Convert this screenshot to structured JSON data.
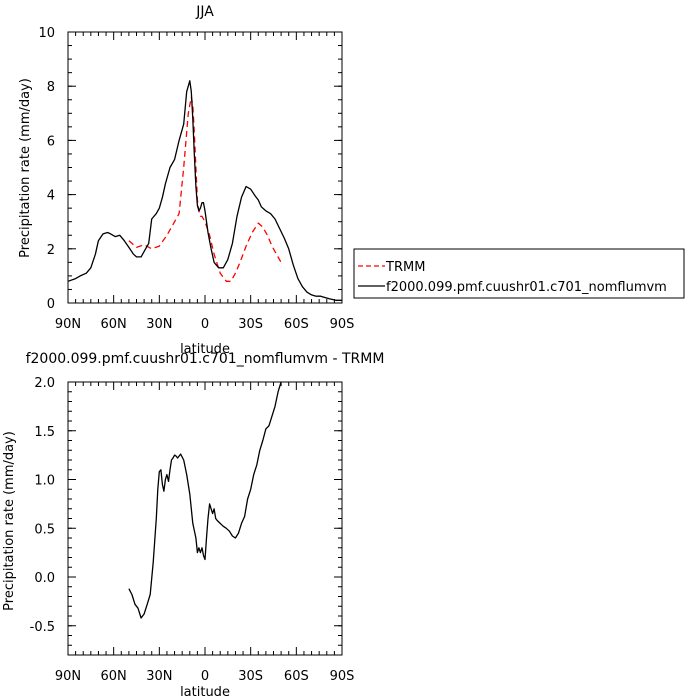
{
  "chart_data": [
    {
      "type": "line",
      "title": "JJA",
      "xlabel": "latitude",
      "ylabel": "Precipitation rate (mm/day)",
      "xlim": [
        90,
        -90
      ],
      "ylim": [
        0,
        10
      ],
      "x_ticks": [
        90,
        60,
        30,
        0,
        -30,
        -60,
        -90
      ],
      "x_tick_labels": [
        "90N",
        "60N",
        "30N",
        "0",
        "30S",
        "60S",
        "90S"
      ],
      "y_ticks": [
        0,
        2,
        4,
        6,
        8,
        10
      ],
      "y_tick_labels": [
        "0",
        "2",
        "4",
        "6",
        "8",
        "10"
      ],
      "legend": {
        "position": "right",
        "entries": [
          "TRMM",
          "f2000.099.pmf.cuushr01.c701_nomflumvm"
        ]
      },
      "series": [
        {
          "name": "TRMM",
          "color": "#ff0000",
          "dash": "dashed",
          "x": [
            50,
            45,
            40,
            35,
            30,
            25,
            20,
            17,
            14,
            11,
            9,
            8,
            7,
            6,
            5,
            4,
            3,
            2,
            0,
            -3,
            -6,
            -10,
            -14,
            -17,
            -20,
            -23,
            -27,
            -31,
            -35,
            -38,
            -41,
            -44,
            -47,
            -50
          ],
          "y": [
            2.3,
            2.05,
            2.15,
            2.0,
            2.1,
            2.5,
            3.0,
            3.3,
            5.0,
            7.0,
            7.6,
            7.3,
            6.3,
            5.0,
            3.8,
            3.4,
            3.2,
            3.2,
            3.0,
            2.5,
            1.8,
            1.1,
            0.8,
            0.8,
            1.1,
            1.5,
            2.1,
            2.6,
            2.95,
            2.8,
            2.5,
            2.1,
            1.8,
            1.5
          ]
        },
        {
          "name": "f2000.099.pmf.cuushr01.c701_nomflumvm",
          "color": "#000000",
          "dash": "solid",
          "x": [
            90,
            85,
            82,
            78,
            75,
            72,
            70,
            67,
            64,
            62,
            59,
            56,
            53,
            50,
            47,
            45,
            42,
            39,
            37,
            35,
            32,
            30,
            28,
            26,
            23,
            20,
            17,
            14,
            12,
            10,
            9,
            8,
            7,
            6,
            5,
            4,
            3,
            2,
            1,
            0,
            -2,
            -4,
            -6,
            -9,
            -12,
            -15,
            -18,
            -21,
            -24,
            -27,
            -30,
            -33,
            -35,
            -37,
            -40,
            -43,
            -46,
            -49,
            -52,
            -55,
            -58,
            -61,
            -64,
            -67,
            -70,
            -73,
            -76,
            -79,
            -82,
            -86,
            -90
          ],
          "y": [
            0.8,
            0.9,
            1.0,
            1.1,
            1.3,
            1.8,
            2.3,
            2.55,
            2.6,
            2.55,
            2.45,
            2.5,
            2.3,
            2.05,
            1.8,
            1.7,
            1.7,
            2.0,
            2.2,
            3.1,
            3.3,
            3.5,
            3.9,
            4.4,
            5.0,
            5.3,
            6.0,
            6.6,
            7.8,
            8.2,
            7.8,
            6.8,
            5.5,
            4.3,
            3.6,
            3.4,
            3.5,
            3.7,
            3.7,
            3.4,
            2.6,
            2.0,
            1.5,
            1.3,
            1.3,
            1.6,
            2.2,
            3.2,
            3.9,
            4.3,
            4.2,
            3.95,
            3.8,
            3.55,
            3.4,
            3.3,
            3.1,
            2.75,
            2.4,
            2.0,
            1.4,
            0.9,
            0.6,
            0.4,
            0.3,
            0.25,
            0.25,
            0.2,
            0.15,
            0.1,
            0.1
          ]
        }
      ]
    },
    {
      "type": "line",
      "title": "f2000.099.pmf.cuushr01.c701_nomflumvm - TRMM",
      "xlabel": "latitude",
      "ylabel": "Precipitation rate (mm/day)",
      "xlim": [
        90,
        -90
      ],
      "ylim": [
        -0.8,
        2.0
      ],
      "x_ticks": [
        90,
        60,
        30,
        0,
        -30,
        -60,
        -90
      ],
      "x_tick_labels": [
        "90N",
        "60N",
        "30N",
        "0",
        "30S",
        "60S",
        "90S"
      ],
      "y_ticks": [
        -0.5,
        0.0,
        0.5,
        1.0,
        1.5,
        2.0
      ],
      "y_tick_labels": [
        "-0.5",
        "0.0",
        "0.5",
        "1.0",
        "1.5",
        "2.0"
      ],
      "series": [
        {
          "color": "#000000",
          "dash": "solid",
          "x": [
            50,
            48,
            46,
            44,
            42,
            40,
            38,
            36,
            34,
            32,
            31,
            30,
            29,
            28,
            27,
            26,
            25,
            24,
            23,
            22,
            21,
            20,
            19,
            18,
            16,
            14,
            12,
            10,
            8,
            6,
            5,
            4,
            3,
            2,
            1,
            0,
            -1,
            -2,
            -3,
            -4,
            -5,
            -6,
            -7,
            -8,
            -10,
            -12,
            -14,
            -16,
            -18,
            -20,
            -22,
            -24,
            -26,
            -28,
            -30,
            -32,
            -34,
            -36,
            -38,
            -40,
            -42,
            -44,
            -46,
            -48,
            -50
          ],
          "y": [
            -0.12,
            -0.18,
            -0.28,
            -0.32,
            -0.42,
            -0.38,
            -0.28,
            -0.18,
            0.15,
            0.6,
            0.9,
            1.08,
            1.1,
            0.95,
            0.88,
            1.0,
            1.05,
            0.98,
            1.1,
            1.2,
            1.22,
            1.25,
            1.24,
            1.22,
            1.26,
            1.2,
            1.05,
            0.85,
            0.55,
            0.4,
            0.25,
            0.3,
            0.25,
            0.3,
            0.22,
            0.18,
            0.4,
            0.6,
            0.75,
            0.7,
            0.65,
            0.7,
            0.6,
            0.58,
            0.55,
            0.52,
            0.5,
            0.47,
            0.42,
            0.4,
            0.45,
            0.55,
            0.62,
            0.8,
            0.9,
            1.05,
            1.15,
            1.3,
            1.4,
            1.52,
            1.55,
            1.65,
            1.75,
            1.9,
            2.0
          ]
        }
      ]
    }
  ]
}
